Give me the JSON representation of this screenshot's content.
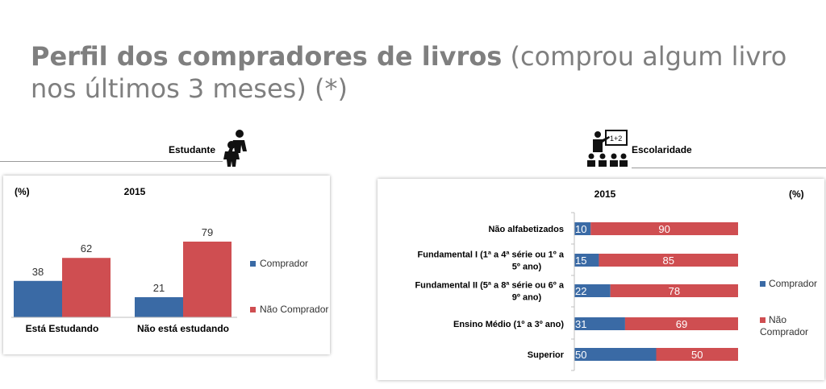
{
  "title": {
    "bold": "Perfil dos compradores de livros",
    "rest": " (comprou algum livro nos últimos 3 meses) (*)"
  },
  "sections": {
    "left_label": "Estudante",
    "left_icon": "students-icon",
    "right_label": "Escolaridade",
    "right_icon": "classroom-teacher-icon"
  },
  "colors": {
    "comprador": "#3a6aa5",
    "nao_comprador": "#cf4e51"
  },
  "chart_data": [
    {
      "type": "bar",
      "title": "2015",
      "unit_label": "(%)",
      "categories": [
        "Está Estudando",
        "Não está estudando"
      ],
      "series": [
        {
          "name": "Comprador",
          "values": [
            38,
            21
          ]
        },
        {
          "name": "Não Comprador",
          "values": [
            62,
            79
          ]
        }
      ],
      "ylim": [
        0,
        90
      ],
      "grid": false,
      "legend": "right"
    },
    {
      "type": "bar",
      "orientation": "horizontal",
      "stacked": true,
      "title": "2015",
      "unit_label": "(%)",
      "categories": [
        "Não alfabetizados",
        "Fundamental I (1ª a 4ª série ou 1º a 5º ano)",
        "Fundamental II (5ª a 8ª série ou 6º a 9º ano)",
        "Ensino Médio (1º a 3º ano)",
        "Superior"
      ],
      "series": [
        {
          "name": "Comprador",
          "values": [
            10,
            15,
            22,
            31,
            50
          ]
        },
        {
          "name": "Não Comprador",
          "values": [
            90,
            85,
            78,
            69,
            50
          ]
        }
      ],
      "xlim": [
        0,
        100
      ],
      "grid": false,
      "legend": "right"
    }
  ]
}
